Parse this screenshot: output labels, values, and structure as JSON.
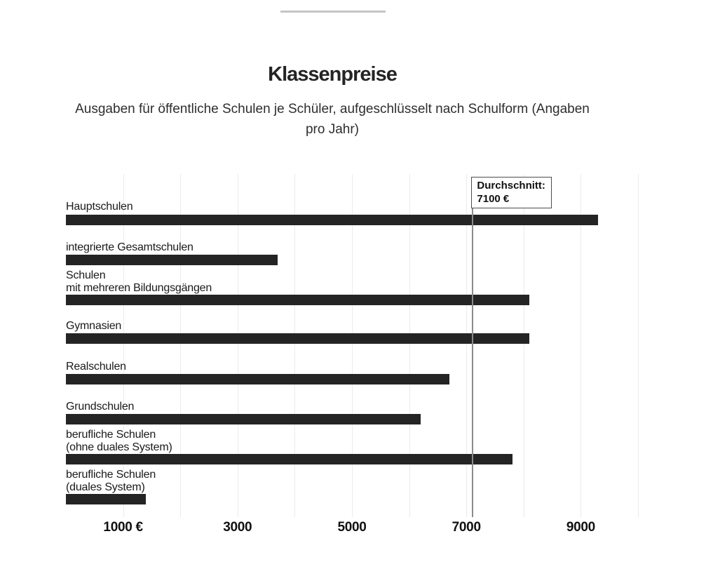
{
  "page": {
    "background_color": "#ffffff"
  },
  "chart_data": {
    "type": "bar",
    "orientation": "horizontal",
    "title": "Klassenpreise",
    "subtitle": "Ausgaben für öffentliche Schulen je Schüler, aufgeschlüsselt nach Schulform (Angaben\npro Jahr)",
    "categories": [
      "Hauptschulen",
      "integrierte Gesamtschulen",
      "Schulen\nmit mehreren Bildungsgängen",
      "Gymnasien",
      "Realschulen",
      "Grundschulen",
      "berufliche Schulen\n(ohne duales System)",
      "berufliche Schulen\n(duales System)"
    ],
    "values": [
      9300,
      3700,
      8100,
      8100,
      6700,
      6200,
      7800,
      1400
    ],
    "unit": "€",
    "xlim": [
      0,
      10000
    ],
    "gridline_step": 1000,
    "grid": true,
    "x_ticks": [
      {
        "value": 1000,
        "label": "1000 €"
      },
      {
        "value": 3000,
        "label": "3000"
      },
      {
        "value": 5000,
        "label": "5000"
      },
      {
        "value": 7000,
        "label": "7000"
      },
      {
        "value": 9000,
        "label": "9000"
      }
    ],
    "reference_line": {
      "value": 7100,
      "label_lines": [
        "Durchschnitt:",
        "7100 €"
      ]
    },
    "colors": {
      "bar": "#242424",
      "gridline": "#ebebeb",
      "reference_line": "#8a8a8a",
      "reference_box_border": "#4d4d4d",
      "text": "#1a1a1a",
      "top_divider": "#c5c5c5"
    }
  }
}
